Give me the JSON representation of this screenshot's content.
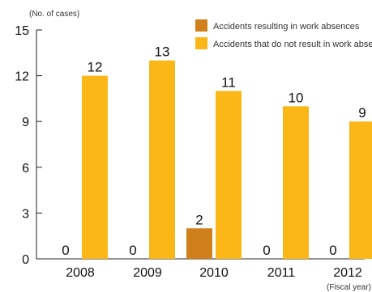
{
  "chart_data": {
    "type": "bar",
    "categories": [
      "2008",
      "2009",
      "2010",
      "2011",
      "2012"
    ],
    "series": [
      {
        "name": "Accidents resulting in work absences",
        "values": [
          0,
          0,
          2,
          0,
          0
        ],
        "color": "#D0801A"
      },
      {
        "name": "Accidents that do not result in work absences",
        "values": [
          12,
          13,
          11,
          10,
          9
        ],
        "color": "#FBB618"
      }
    ],
    "ylabel": "(No. of cases)",
    "xlabel": "(Fiscal year)",
    "ylim": [
      0,
      15
    ],
    "yticks": [
      0,
      3,
      6,
      9,
      12,
      15
    ],
    "legend": "top-right",
    "grid": false
  }
}
